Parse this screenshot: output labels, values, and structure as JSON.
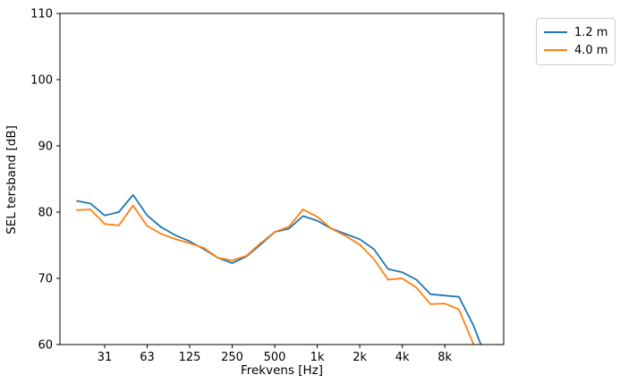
{
  "chart_data": {
    "type": "line",
    "x_scale": "log (third-octave bands)",
    "x": [
      20,
      25,
      31.5,
      40,
      50,
      63,
      80,
      100,
      125,
      160,
      200,
      250,
      315,
      400,
      500,
      630,
      800,
      1000,
      1250,
      1600,
      2000,
      2500,
      3150,
      4000,
      5000,
      6300,
      8000,
      10000,
      12500,
      16000
    ],
    "series": [
      {
        "name": "1.2 m",
        "color": "#1f77b4",
        "values": [
          81.7,
          81.3,
          79.5,
          80.0,
          82.6,
          79.5,
          77.7,
          76.5,
          75.6,
          74.4,
          73.1,
          72.3,
          73.3,
          75.1,
          77.0,
          77.5,
          79.4,
          78.7,
          77.5,
          76.7,
          75.9,
          74.4,
          71.4,
          70.9,
          69.8,
          67.6,
          67.4,
          67.2,
          63.0,
          57.5
        ]
      },
      {
        "name": "4.0 m",
        "color": "#ff7f0e",
        "values": [
          80.3,
          80.4,
          78.2,
          78.0,
          81.0,
          77.9,
          76.7,
          75.9,
          75.3,
          74.6,
          73.1,
          72.7,
          73.4,
          75.3,
          77.0,
          77.8,
          80.4,
          79.3,
          77.5,
          76.4,
          75.1,
          72.9,
          69.8,
          70.0,
          68.6,
          66.1,
          66.2,
          65.3,
          60.2,
          55.5
        ]
      }
    ],
    "title": "",
    "xlabel": "Frekvens [Hz]",
    "ylabel": "SEL tersband [dB]",
    "ylim": [
      60,
      110
    ],
    "yticks": [
      60,
      70,
      80,
      90,
      100,
      110
    ],
    "xtick_labels": [
      "31",
      "63",
      "125",
      "250",
      "500",
      "1k",
      "2k",
      "4k",
      "8k"
    ],
    "xtick_band_index": [
      2,
      5,
      8,
      11,
      14,
      17,
      20,
      23,
      26
    ],
    "grid": false,
    "legend_position": "outside upper right"
  }
}
